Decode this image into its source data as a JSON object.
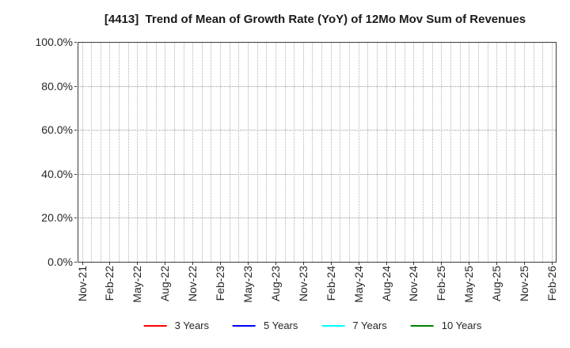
{
  "chart_data": {
    "type": "line",
    "title": "[4413]  Trend of Mean of Growth Rate (YoY) of 12Mo Mov Sum of Revenues",
    "xlabel": "",
    "ylabel": "",
    "x_tick_labels": [
      "Nov-21",
      "Feb-22",
      "May-22",
      "Aug-22",
      "Nov-22",
      "Feb-23",
      "May-23",
      "Aug-23",
      "Nov-23",
      "Feb-24",
      "May-24",
      "Aug-24",
      "Nov-24",
      "Feb-25",
      "May-25",
      "Aug-25",
      "Nov-25",
      "Feb-26"
    ],
    "x_tick_every_months": 3,
    "x_total_months": 51,
    "y_tick_labels": [
      "0.0%",
      "20.0%",
      "40.0%",
      "60.0%",
      "80.0%",
      "100.0%"
    ],
    "y_tick_values": [
      0,
      20,
      40,
      60,
      80,
      100
    ],
    "ylim": [
      0,
      100
    ],
    "grid": true,
    "legend_position": "bottom-center",
    "series": [
      {
        "name": "3 Years",
        "color": "#ff0000",
        "values": []
      },
      {
        "name": "5 Years",
        "color": "#0000ff",
        "values": []
      },
      {
        "name": "7 Years",
        "color": "#00ffff",
        "values": []
      },
      {
        "name": "10 Years",
        "color": "#008000",
        "values": []
      }
    ]
  },
  "colors": {
    "frame": "#3c3c3c",
    "grid_vertical": "#b3b3b3",
    "grid_horizontal": "#999999",
    "text": "#262626",
    "background": "#ffffff"
  }
}
